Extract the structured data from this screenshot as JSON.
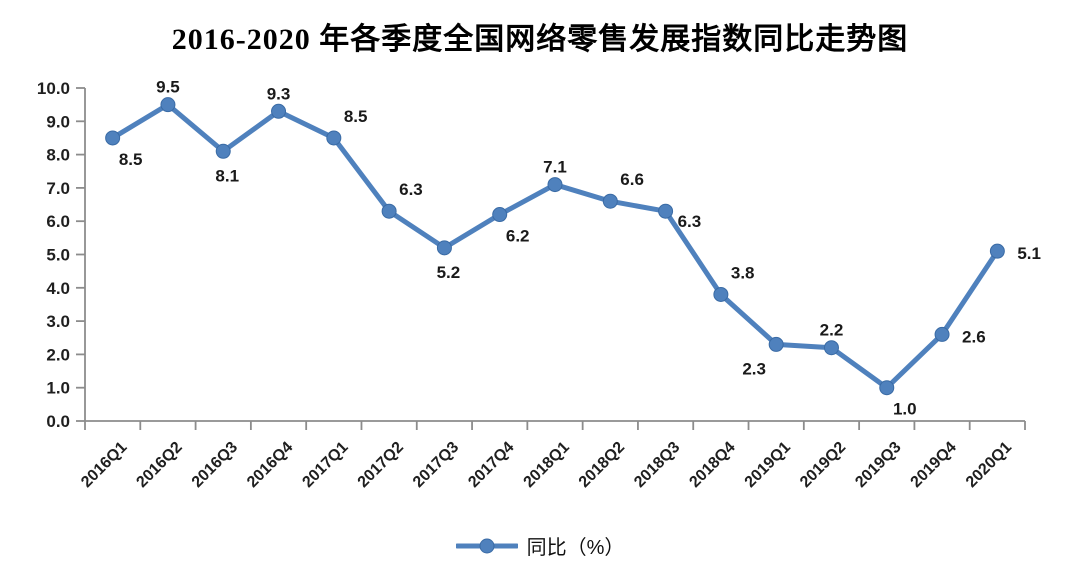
{
  "title": "2016-2020 年各季度全国网络零售发展指数同比走势图",
  "chart_data": {
    "type": "line",
    "title": "2016-2020 年各季度全国网络零售发展指数同比走势图",
    "categories": [
      "2016Q1",
      "2016Q2",
      "2016Q3",
      "2016Q4",
      "2017Q1",
      "2017Q2",
      "2017Q3",
      "2017Q4",
      "2018Q1",
      "2018Q2",
      "2018Q3",
      "2018Q4",
      "2019Q1",
      "2019Q2",
      "2019Q3",
      "2019Q4",
      "2020Q1"
    ],
    "series": [
      {
        "name": "同比（%）",
        "values": [
          8.5,
          9.5,
          8.1,
          9.3,
          8.5,
          6.3,
          5.2,
          6.2,
          7.1,
          6.6,
          6.3,
          3.8,
          2.3,
          2.2,
          1.0,
          2.6,
          5.1
        ]
      }
    ],
    "data_label_positions": [
      "below-right",
      "above",
      "below",
      "above",
      "above-right",
      "above-right",
      "below",
      "below-right",
      "above",
      "above-right",
      "right-below",
      "above-right",
      "below-left",
      "above",
      "below-right",
      "right",
      "right"
    ],
    "xlabel": "",
    "ylabel": "",
    "ylim": [
      0,
      10
    ],
    "ytick_labels": [
      "0.0",
      "1.0",
      "2.0",
      "3.0",
      "4.0",
      "5.0",
      "6.0",
      "7.0",
      "8.0",
      "9.0",
      "10.0"
    ],
    "grid": false,
    "legend": {
      "position": "bottom",
      "label": "同比（%）"
    },
    "colors": {
      "line": "#4F81BD",
      "marker": "#4F81BD",
      "marker_stroke": "#3A6BA5",
      "axis": "#8C8C8C",
      "tick_text": "#1f1f1f",
      "data_label_text": "#1a1a1a"
    }
  }
}
